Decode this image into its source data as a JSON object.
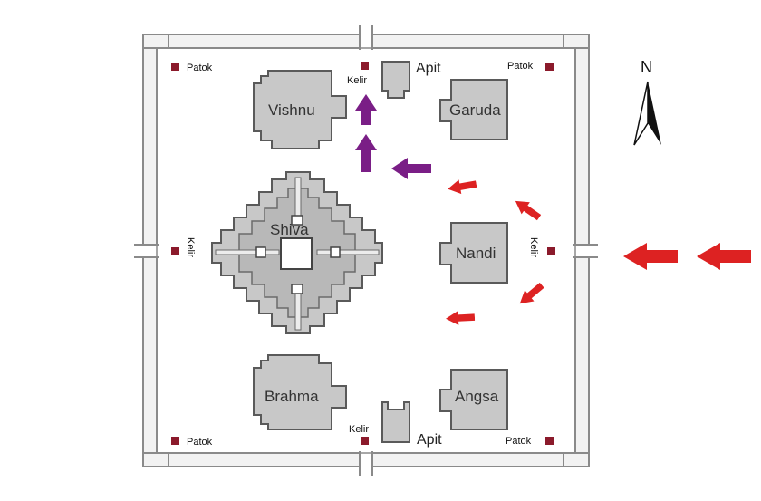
{
  "temples": {
    "shiva": "Shiva",
    "vishnu": "Vishnu",
    "brahma": "Brahma",
    "garuda": "Garuda",
    "nandi": "Nandi",
    "angsa": "Angsa"
  },
  "apit_labels": [
    "Apit",
    "Apit"
  ],
  "kelir_labels": [
    "Kelir",
    "Kelir",
    "Kelir",
    "Kelir"
  ],
  "patok_labels": [
    "Patok",
    "Patok",
    "Patok",
    "Patok"
  ],
  "compass": {
    "label": "N",
    "icon": "north-arrow-icon"
  },
  "arrows": {
    "approach_icon": "red-arrow-icon",
    "inner_path_icon": "purple-arrow-icon"
  },
  "colors": {
    "wall_fill": "#f2f2f2",
    "wall_stroke": "#8a8a8a",
    "temple_fill": "#c8c8c8",
    "temple_stroke": "#5a5a5a",
    "marker": "#8b1a2b",
    "red_arrow": "#dd2222",
    "purple_arrow": "#7a1e86"
  }
}
